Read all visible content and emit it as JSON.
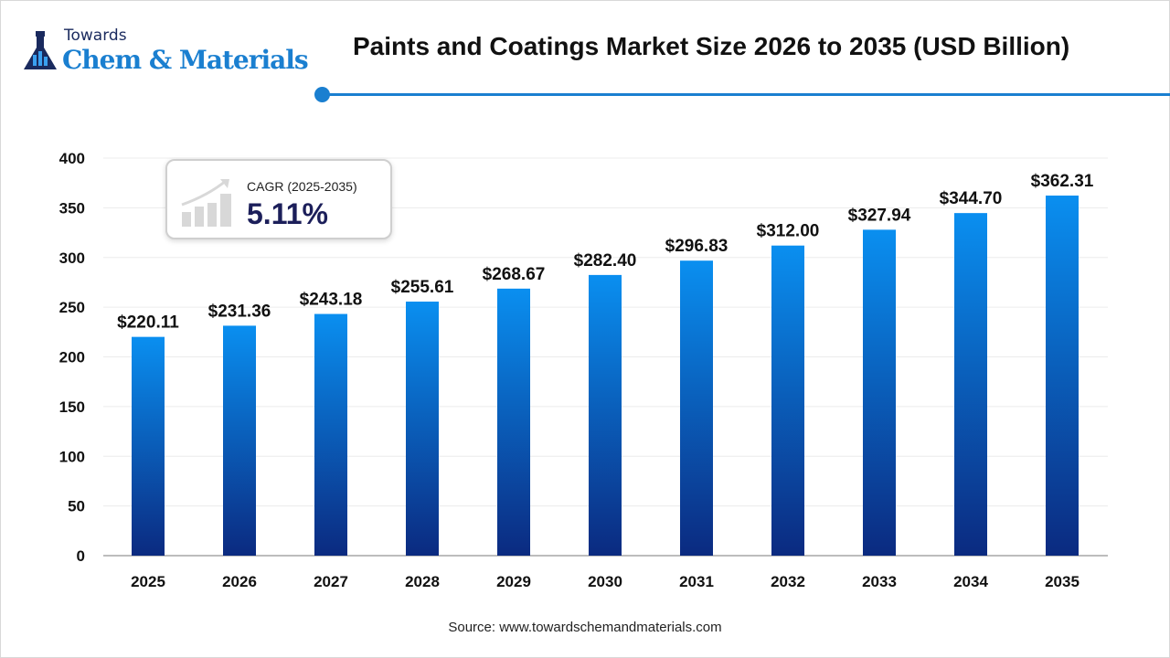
{
  "logo": {
    "top": "Towards",
    "main": "Chem & Materials"
  },
  "cagr": {
    "label": "CAGR (2025-2035)",
    "value": "5.11%"
  },
  "source": "Source: www.towardschemandmaterials.com",
  "colors": {
    "accent": "#1a7fd0",
    "bar_top": "#0a8ff0",
    "bar_bottom": "#0b2a80",
    "cagr_text": "#1c1f5a"
  },
  "chart_data": {
    "type": "bar",
    "title": "Paints and Coatings Market Size 2026 to 2035 (USD Billion)",
    "xlabel": "",
    "ylabel": "",
    "categories": [
      "2025",
      "2026",
      "2027",
      "2028",
      "2029",
      "2030",
      "2031",
      "2032",
      "2033",
      "2034",
      "2035"
    ],
    "values": [
      220.11,
      231.36,
      243.18,
      255.61,
      268.67,
      282.4,
      296.83,
      312.0,
      327.94,
      344.7,
      362.31
    ],
    "data_labels": [
      "$220.11",
      "$231.36",
      "$243.18",
      "$255.61",
      "$268.67",
      "$282.40",
      "$296.83",
      "$312.00",
      "$327.94",
      "$344.70",
      "$362.31"
    ],
    "ylim": [
      0,
      400
    ],
    "yticks": [
      0,
      50,
      100,
      150,
      200,
      250,
      300,
      350,
      400
    ],
    "grid": true,
    "legend": "none"
  }
}
